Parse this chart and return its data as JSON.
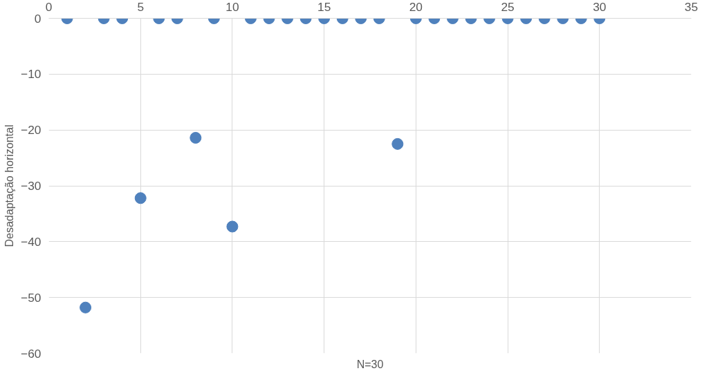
{
  "chart_data": {
    "type": "scatter",
    "xlabel": "N=30",
    "ylabel": "Desadaptação horizontal",
    "x": [
      1,
      2,
      3,
      4,
      5,
      6,
      7,
      8,
      9,
      10,
      11,
      12,
      13,
      14,
      15,
      16,
      17,
      18,
      19,
      20,
      21,
      22,
      23,
      24,
      25,
      26,
      27,
      28,
      29,
      30
    ],
    "series": [
      {
        "color": "#4f81bd",
        "values": [
          0,
          -51.8,
          0,
          0,
          -32.2,
          0,
          0,
          -21.4,
          0,
          -37.3,
          0,
          0,
          0,
          0,
          0,
          0,
          0,
          0,
          -22.5,
          0,
          0,
          0,
          0,
          0,
          0,
          0,
          0,
          0,
          0,
          0
        ]
      }
    ],
    "xlim": [
      0,
      35
    ],
    "xticks": [
      0,
      5,
      10,
      15,
      20,
      25,
      30,
      35
    ],
    "ylim": [
      -60,
      0
    ],
    "yticks": [
      0,
      -10,
      -20,
      -30,
      -40,
      -50,
      -60
    ],
    "grid": true,
    "marker": "circle"
  }
}
